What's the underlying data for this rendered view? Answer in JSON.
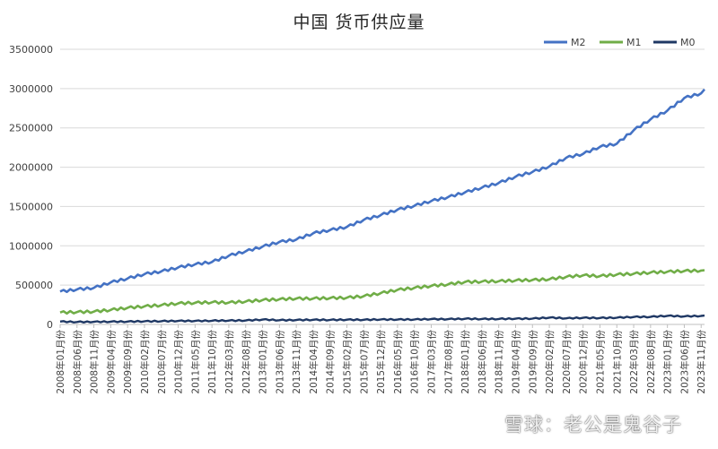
{
  "chart_data": {
    "type": "line",
    "title": "中国 货币供应量",
    "xlabel": "",
    "ylabel": "",
    "ylim": [
      0,
      3500000
    ],
    "yticks": [
      0,
      500000,
      1000000,
      1500000,
      2000000,
      2500000,
      3000000,
      3500000
    ],
    "ytick_labels": [
      "0",
      "500000",
      "1000000",
      "1500000",
      "2000000",
      "2500000",
      "3000000",
      "3500000"
    ],
    "x_start": "2008-01",
    "x_end": "2023-12",
    "x_tick_labels": [
      "2008年01月份",
      "2008年06月份",
      "2008年11月份",
      "2009年04月份",
      "2009年09月份",
      "2010年02月份",
      "2010年07月份",
      "2010年12月份",
      "2011年05月份",
      "2011年10月份",
      "2012年03月份",
      "2012年08月份",
      "2013年01月份",
      "2013年06月份",
      "2013年11月份",
      "2014年04月份",
      "2014年09月份",
      "2015年02月份",
      "2015年07月份",
      "2015年12月份",
      "2016年05月份",
      "2016年10月份",
      "2017年03月份",
      "2017年08月份",
      "2018年01月份",
      "2018年06月份",
      "2018年11月份",
      "2019年04月份",
      "2019年09月份",
      "2020年02月份",
      "2020年07月份",
      "2020年12月份",
      "2021年05月份",
      "2021年10月份",
      "2022年03月份",
      "2022年08月份",
      "2023年01月份",
      "2023年06月份",
      "2023年11月份"
    ],
    "grid": "horizontal",
    "legend_position": "top-right",
    "series": [
      {
        "name": "M2",
        "color": "#4472c4",
        "x": [
          "2008-01",
          "2008-06",
          "2008-11",
          "2009-04",
          "2009-09",
          "2010-02",
          "2010-07",
          "2010-12",
          "2011-05",
          "2011-10",
          "2012-03",
          "2012-08",
          "2013-01",
          "2013-06",
          "2013-11",
          "2014-04",
          "2014-09",
          "2015-02",
          "2015-07",
          "2015-12",
          "2016-05",
          "2016-10",
          "2017-03",
          "2017-08",
          "2018-01",
          "2018-06",
          "2018-11",
          "2019-04",
          "2019-09",
          "2020-02",
          "2020-07",
          "2020-12",
          "2021-05",
          "2021-10",
          "2022-03",
          "2022-08",
          "2023-01",
          "2023-06",
          "2023-11",
          "2023-12"
        ],
        "y": [
          418000,
          446000,
          465000,
          535000,
          585000,
          640000,
          675000,
          725000,
          765000,
          795000,
          875000,
          930000,
          990000,
          1050000,
          1080000,
          1160000,
          1200000,
          1240000,
          1330000,
          1390000,
          1460000,
          1510000,
          1570000,
          1620000,
          1680000,
          1740000,
          1800000,
          1880000,
          1940000,
          2010000,
          2120000,
          2170000,
          2260000,
          2300000,
          2470000,
          2610000,
          2720000,
          2880000,
          2940000,
          2990000
        ]
      },
      {
        "name": "M1",
        "color": "#70ad47",
        "x": [
          "2008-01",
          "2008-06",
          "2008-11",
          "2009-04",
          "2009-09",
          "2010-02",
          "2010-07",
          "2010-12",
          "2011-05",
          "2011-10",
          "2012-03",
          "2012-08",
          "2013-01",
          "2013-06",
          "2013-11",
          "2014-04",
          "2014-09",
          "2015-02",
          "2015-07",
          "2015-12",
          "2016-05",
          "2016-10",
          "2017-03",
          "2017-08",
          "2018-01",
          "2018-06",
          "2018-11",
          "2019-04",
          "2019-09",
          "2020-02",
          "2020-07",
          "2020-12",
          "2021-05",
          "2021-10",
          "2022-03",
          "2022-08",
          "2023-01",
          "2023-06",
          "2023-11",
          "2023-12"
        ],
        "y": [
          152000,
          157000,
          163000,
          185000,
          212000,
          230000,
          245000,
          268000,
          275000,
          282000,
          278000,
          292000,
          310000,
          320000,
          330000,
          330000,
          335000,
          340000,
          360000,
          398000,
          440000,
          465000,
          490000,
          510000,
          540000,
          545000,
          550000,
          560000,
          565000,
          575000,
          605000,
          625000,
          615000,
          635000,
          645000,
          660000,
          670000,
          680000,
          685000,
          690000
        ]
      },
      {
        "name": "M0",
        "color": "#1f3864",
        "x": [
          "2008-01",
          "2008-06",
          "2008-11",
          "2009-04",
          "2009-09",
          "2010-02",
          "2010-07",
          "2010-12",
          "2011-05",
          "2011-10",
          "2012-03",
          "2012-08",
          "2013-01",
          "2013-06",
          "2013-11",
          "2014-04",
          "2014-09",
          "2015-02",
          "2015-07",
          "2015-12",
          "2016-05",
          "2016-10",
          "2017-03",
          "2017-08",
          "2018-01",
          "2018-06",
          "2018-11",
          "2019-04",
          "2019-09",
          "2020-02",
          "2020-07",
          "2020-12",
          "2021-05",
          "2021-10",
          "2022-03",
          "2022-08",
          "2023-01",
          "2023-06",
          "2023-11",
          "2023-12"
        ],
        "y": [
          36000,
          31000,
          33000,
          35000,
          36000,
          40000,
          41000,
          45000,
          44000,
          47000,
          49000,
          50000,
          62000,
          54000,
          56000,
          59000,
          57000,
          60000,
          59000,
          63000,
          62000,
          63000,
          68000,
          67000,
          72000,
          69000,
          70000,
          73000,
          74000,
          87000,
          78000,
          84000,
          82000,
          86000,
          95000,
          96000,
          110000,
          102000,
          108000,
          113000
        ]
      }
    ]
  },
  "watermark": {
    "text": "雪球：老公是鬼谷子"
  }
}
